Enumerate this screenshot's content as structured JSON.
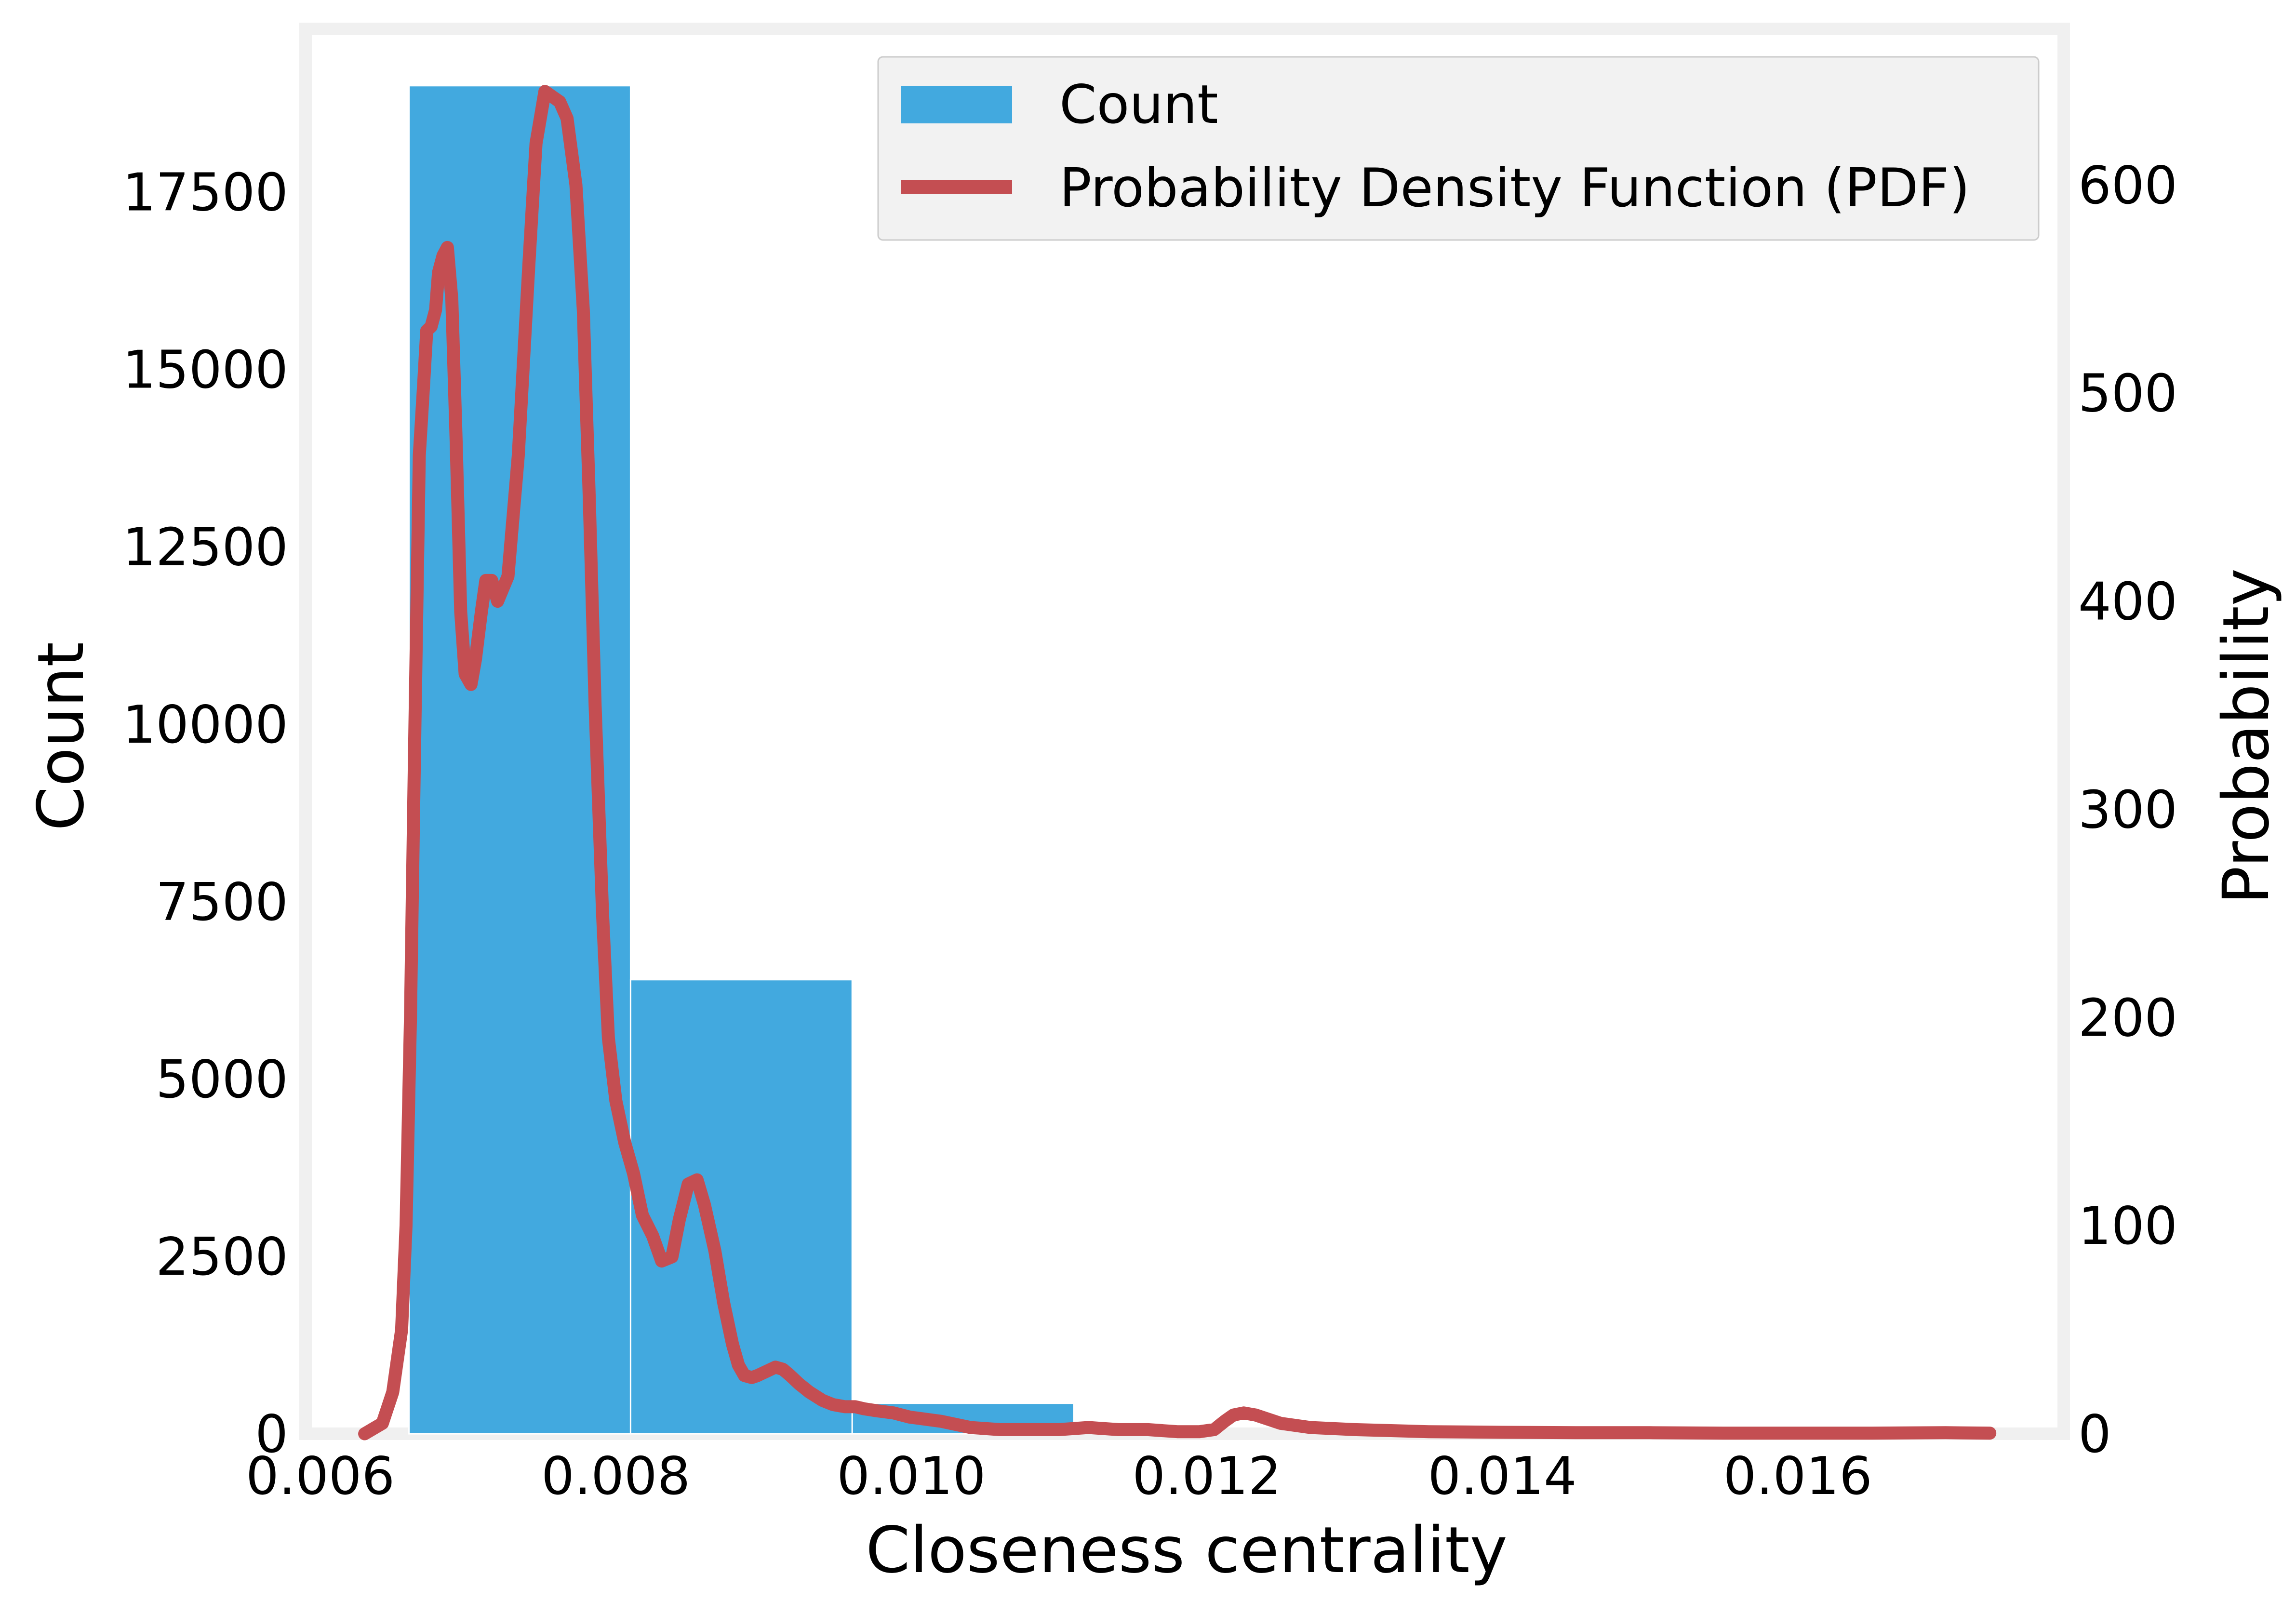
{
  "chart_data": {
    "type": "bar",
    "xlabel": "Closeness centrality",
    "ylabel": "Count",
    "y2label": "Probability",
    "xlim": [
      0.0059,
      0.0178
    ],
    "ylim": [
      0,
      19800
    ],
    "y2lim": [
      0,
      675
    ],
    "grid": false,
    "legend_position": "top-right",
    "x_ticks": [
      "0.006",
      "0.008",
      "0.010",
      "0.012",
      "0.014",
      "0.016"
    ],
    "y_ticks": [
      "0",
      "2500",
      "5000",
      "7500",
      "10000",
      "12500",
      "15000",
      "17500"
    ],
    "y2_ticks": [
      "0",
      "100",
      "200",
      "300",
      "400",
      "500",
      "600"
    ],
    "colors": {
      "bars": "#42a9df",
      "pdf_line": "#c44e52",
      "frame": "#f0f0f0",
      "legend_bg": "#f2f2f2",
      "legend_border": "#cccccc"
    },
    "series": [
      {
        "name": "Count",
        "type": "bar",
        "bins": [
          {
            "x0": 0.0066,
            "x1": 0.0081,
            "value": 19000
          },
          {
            "x0": 0.0081,
            "x1": 0.0096,
            "value": 6400
          },
          {
            "x0": 0.0096,
            "x1": 0.0111,
            "value": 430
          },
          {
            "x0": 0.0111,
            "x1": 0.0126,
            "value": 0
          },
          {
            "x0": 0.0126,
            "x1": 0.0141,
            "value": 0
          },
          {
            "x0": 0.0141,
            "x1": 0.0156,
            "value": 0
          },
          {
            "x0": 0.0156,
            "x1": 0.0171,
            "value": 0
          }
        ]
      },
      {
        "name": "Probability Density Function (PDF)",
        "type": "line",
        "axis": "right",
        "x": [
          0.0063,
          0.00642,
          0.00649,
          0.00655,
          0.00658,
          0.00661,
          0.00664,
          0.00667,
          0.0067,
          0.00672,
          0.00675,
          0.00678,
          0.0068,
          0.00683,
          0.00686,
          0.00689,
          0.00692,
          0.00695,
          0.00698,
          0.00702,
          0.00705,
          0.00709,
          0.00712,
          0.00716,
          0.0072,
          0.00727,
          0.00734,
          0.00741,
          0.00746,
          0.00752,
          0.00758,
          0.00762,
          0.00767,
          0.00773,
          0.00778,
          0.00782,
          0.00786,
          0.00791,
          0.00795,
          0.008,
          0.00806,
          0.00812,
          0.00818,
          0.00825,
          0.00831,
          0.00838,
          0.00843,
          0.00849,
          0.00855,
          0.0086,
          0.00867,
          0.00873,
          0.00879,
          0.00883,
          0.00887,
          0.00892,
          0.00896,
          0.00902,
          0.00908,
          0.00913,
          0.00918,
          0.00924,
          0.00931,
          0.0094,
          0.00947,
          0.00955,
          0.00962,
          0.00968,
          0.00977,
          0.00988,
          0.00999,
          0.0102,
          0.0104,
          0.0106,
          0.0108,
          0.011,
          0.0112,
          0.0114,
          0.0116,
          0.0118,
          0.01195,
          0.01205,
          0.01212,
          0.01218,
          0.01225,
          0.01233,
          0.0125,
          0.0127,
          0.013,
          0.0135,
          0.014,
          0.0145,
          0.015,
          0.0155,
          0.016,
          0.0165,
          0.017,
          0.0173
        ],
        "y": [
          0,
          5,
          20,
          50,
          100,
          200,
          340,
          470,
          505,
          530,
          532,
          540,
          558,
          566,
          570,
          545,
          475,
          395,
          365,
          360,
          372,
          395,
          410,
          410,
          400,
          412,
          470,
          560,
          620,
          645,
          642,
          640,
          632,
          600,
          540,
          450,
          350,
          250,
          190,
          160,
          140,
          125,
          105,
          95,
          83,
          85,
          103,
          120,
          122,
          110,
          88,
          63,
          43,
          33,
          28,
          27,
          28,
          30,
          32,
          31,
          28,
          24,
          20,
          16,
          14,
          13,
          13,
          12,
          11,
          10,
          8,
          6,
          3,
          2,
          2,
          2,
          3,
          2,
          2,
          1,
          1,
          2,
          6,
          9,
          10,
          9,
          5,
          3,
          2,
          1,
          0.7,
          0.5,
          0.5,
          0.3,
          0.3,
          0.3,
          0.5,
          0.3
        ]
      }
    ]
  }
}
